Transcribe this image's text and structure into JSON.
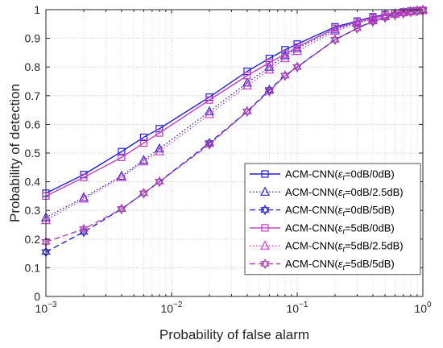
{
  "chart_data": {
    "type": "line",
    "xlabel": "Probability of false alarm",
    "ylabel": "Probability of detection",
    "xscale": "log",
    "xlim": [
      0.001,
      1
    ],
    "ylim": [
      0,
      1
    ],
    "grid": true,
    "legend_position": "bottom-right",
    "x_ticks": [
      {
        "value": 0.001,
        "base": "10",
        "exp": "−3"
      },
      {
        "value": 0.01,
        "base": "10",
        "exp": "−2"
      },
      {
        "value": 0.1,
        "base": "10",
        "exp": "−1"
      },
      {
        "value": 1,
        "base": "10",
        "exp": "0"
      }
    ],
    "y_ticks": [
      "0",
      "0.1",
      "0.2",
      "0.3",
      "0.4",
      "0.5",
      "0.6",
      "0.7",
      "0.8",
      "0.9",
      "1"
    ],
    "x": [
      0.001,
      0.002,
      0.004,
      0.006,
      0.008,
      0.02,
      0.04,
      0.06,
      0.08,
      0.1,
      0.2,
      0.3,
      0.4,
      0.5,
      0.6,
      0.7,
      0.8,
      0.9,
      1.0
    ],
    "series": [
      {
        "label_prefix": "ACM-CNN(",
        "label_symbol": "ε",
        "label_sub": "t",
        "label_suffix": "=0dB/0dB)",
        "color": "#1f1fd6",
        "dash": "solid",
        "marker": "square",
        "values": [
          0.36,
          0.425,
          0.505,
          0.555,
          0.585,
          0.695,
          0.785,
          0.83,
          0.86,
          0.88,
          0.94,
          0.96,
          0.975,
          0.983,
          0.988,
          0.992,
          0.995,
          0.997,
          0.998
        ]
      },
      {
        "label_prefix": "ACM-CNN(",
        "label_symbol": "ε",
        "label_sub": "t",
        "label_suffix": "=0dB/2.5dB)",
        "color": "#2a2ad0",
        "dash": "dotted",
        "marker": "triangle",
        "values": [
          0.275,
          0.345,
          0.42,
          0.475,
          0.515,
          0.645,
          0.745,
          0.8,
          0.84,
          0.865,
          0.93,
          0.955,
          0.97,
          0.98,
          0.986,
          0.99,
          0.994,
          0.996,
          0.998
        ]
      },
      {
        "label_prefix": "ACM-CNN(",
        "label_symbol": "ε",
        "label_sub": "t",
        "label_suffix": "=0dB/5dB)",
        "color": "#2323cc",
        "dash": "dashed",
        "marker": "hexagram",
        "values": [
          0.155,
          0.225,
          0.305,
          0.36,
          0.4,
          0.535,
          0.645,
          0.72,
          0.77,
          0.8,
          0.895,
          0.935,
          0.96,
          0.974,
          0.982,
          0.988,
          0.993,
          0.996,
          0.998
        ]
      },
      {
        "label_prefix": "ACM-CNN(",
        "label_symbol": "ε",
        "label_sub": "t",
        "label_suffix": "=5dB/0dB)",
        "color": "#c03cc0",
        "dash": "solid",
        "marker": "square",
        "values": [
          0.35,
          0.415,
          0.485,
          0.535,
          0.57,
          0.685,
          0.77,
          0.815,
          0.845,
          0.87,
          0.935,
          0.958,
          0.972,
          0.981,
          0.987,
          0.991,
          0.994,
          0.997,
          0.998
        ]
      },
      {
        "label_prefix": "ACM-CNN(",
        "label_symbol": "ε",
        "label_sub": "t",
        "label_suffix": "=5dB/2.5dB)",
        "color": "#cc44cc",
        "dash": "dotted",
        "marker": "triangle",
        "values": [
          0.265,
          0.34,
          0.415,
          0.47,
          0.505,
          0.635,
          0.735,
          0.79,
          0.83,
          0.855,
          0.925,
          0.952,
          0.968,
          0.979,
          0.985,
          0.99,
          0.993,
          0.996,
          0.998
        ]
      },
      {
        "label_prefix": "ACM-CNN(",
        "label_symbol": "ε",
        "label_sub": "t",
        "label_suffix": "=5dB/5dB)",
        "color": "#b040b0",
        "dash": "dashed",
        "marker": "hexagram",
        "values": [
          0.19,
          0.235,
          0.305,
          0.36,
          0.4,
          0.53,
          0.645,
          0.715,
          0.77,
          0.8,
          0.895,
          0.935,
          0.958,
          0.972,
          0.981,
          0.987,
          0.992,
          0.995,
          0.998
        ]
      }
    ]
  }
}
